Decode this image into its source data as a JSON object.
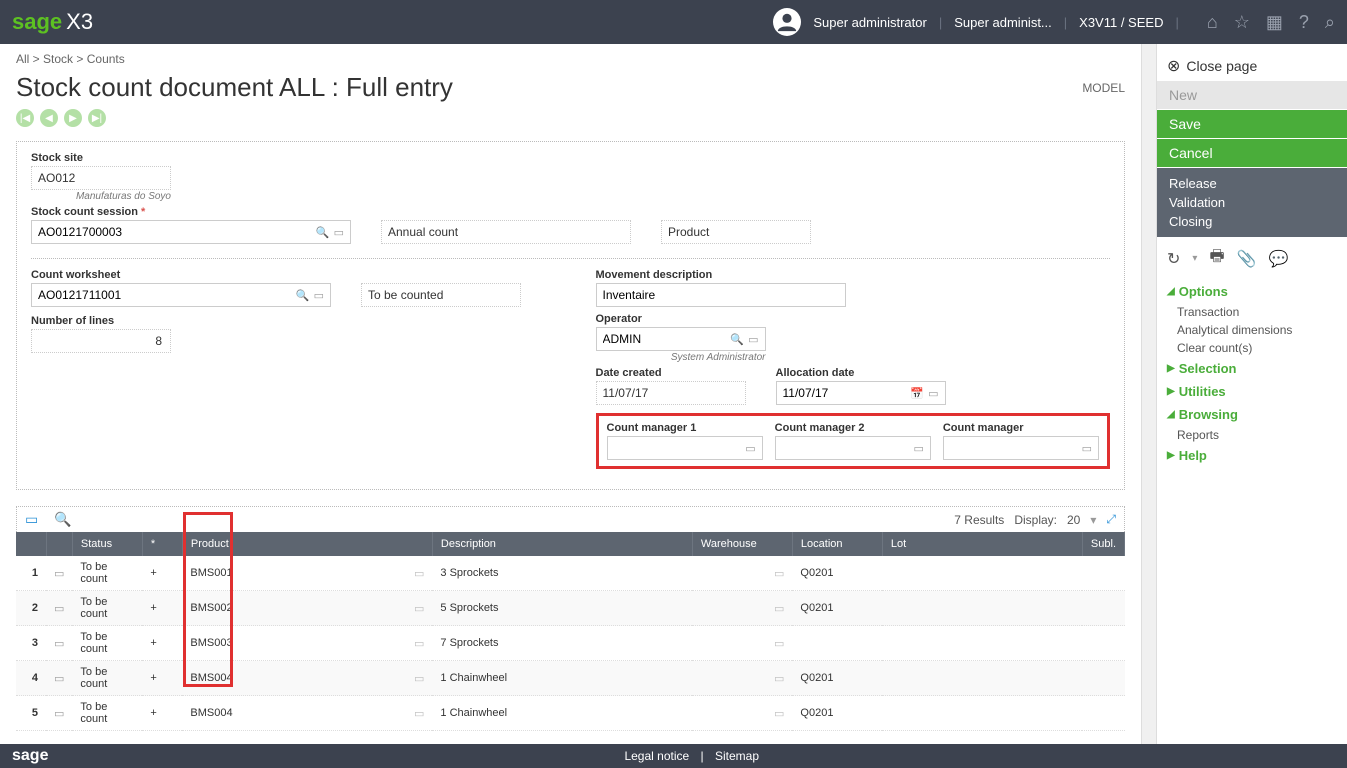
{
  "topbar": {
    "logo_sage": "sage",
    "logo_x3": "X3",
    "user_role": "Super administrator",
    "user_short": "Super administ...",
    "env": "X3V11 / SEED"
  },
  "breadcrumb": {
    "all": "All",
    "stock": "Stock",
    "counts": "Counts"
  },
  "page": {
    "title": "Stock count document ALL : Full entry",
    "model": "MODEL"
  },
  "form": {
    "stock_site_label": "Stock site",
    "stock_site": "AO012",
    "stock_site_sub": "Manufaturas do Soyo",
    "session_label": "Stock count session",
    "session": "AO0121700003",
    "annual": "Annual count",
    "product": "Product",
    "worksheet_label": "Count worksheet",
    "worksheet": "AO0121711001",
    "worksheet_status": "To be counted",
    "lines_label": "Number of lines",
    "lines": "8",
    "movement_label": "Movement description",
    "movement": "Inventaire",
    "operator_label": "Operator",
    "operator": "ADMIN",
    "operator_sub": "System Administrator",
    "date_created_label": "Date created",
    "date_created": "11/07/17",
    "alloc_date_label": "Allocation date",
    "alloc_date": "11/07/17",
    "cm1_label": "Count manager 1",
    "cm2_label": "Count manager 2",
    "cm3_label": "Count manager"
  },
  "table": {
    "results": "7 Results",
    "display_label": "Display:",
    "display_value": "20",
    "cols": {
      "status": "Status",
      "star": "*",
      "product": "Product",
      "desc": "Description",
      "warehouse": "Warehouse",
      "location": "Location",
      "lot": "Lot",
      "subl": "Subl."
    },
    "rows": [
      {
        "n": "1",
        "status": "To be count",
        "star": "+",
        "product": "BMS001",
        "desc": "3 Sprockets",
        "location": "Q0201"
      },
      {
        "n": "2",
        "status": "To be count",
        "star": "+",
        "product": "BMS002",
        "desc": "5 Sprockets",
        "location": "Q0201"
      },
      {
        "n": "3",
        "status": "To be count",
        "star": "+",
        "product": "BMS003",
        "desc": "7 Sprockets",
        "location": ""
      },
      {
        "n": "4",
        "status": "To be count",
        "star": "+",
        "product": "BMS004",
        "desc": "1 Chainwheel",
        "location": "Q0201"
      },
      {
        "n": "5",
        "status": "To be count",
        "star": "+",
        "product": "BMS004",
        "desc": "1 Chainwheel",
        "location": "Q0201"
      }
    ]
  },
  "rpanel": {
    "close": "Close page",
    "new": "New",
    "save": "Save",
    "cancel": "Cancel",
    "release": "Release",
    "validation": "Validation",
    "closing": "Closing",
    "options": "Options",
    "transaction": "Transaction",
    "analytical": "Analytical dimensions",
    "clear": "Clear count(s)",
    "selection": "Selection",
    "utilities": "Utilities",
    "browsing": "Browsing",
    "reports": "Reports",
    "help": "Help"
  },
  "footer": {
    "logo": "sage",
    "legal": "Legal notice",
    "sitemap": "Sitemap"
  }
}
